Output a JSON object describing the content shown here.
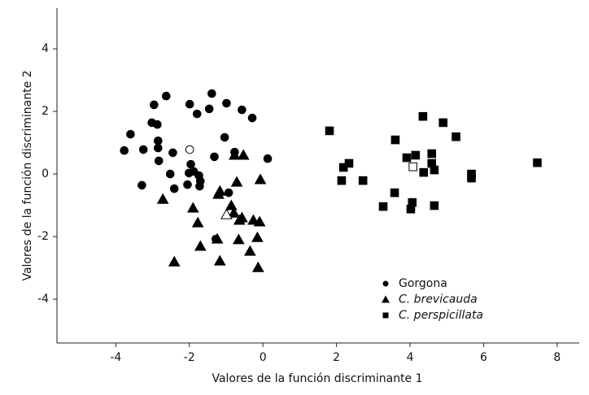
{
  "chart_data": {
    "type": "scatter",
    "x_label": "Valores de la función discriminante 1",
    "y_label": "Valores de la función discriminante 2",
    "xlim": [
      -5.6,
      8.6
    ],
    "ylim": [
      -5.4,
      5.3
    ],
    "xticks": [
      -4,
      -2,
      0,
      2,
      4,
      6,
      8
    ],
    "yticks": [
      -4,
      -2,
      0,
      2,
      4
    ],
    "series": [
      {
        "name": "Gorgona",
        "marker": "circle",
        "italic": false,
        "color": "#000000",
        "x": [
          -2.63,
          -2.96,
          -3.02,
          -2.87,
          -2.85,
          -2.85,
          -3.25,
          -3.77,
          -3.6,
          -2.83,
          -2.52,
          -2.45,
          -2.41,
          -3.29,
          -1.99,
          -1.79,
          -1.39,
          -1.46,
          -0.99,
          -0.57,
          -0.29,
          -1.04,
          -1.32,
          -0.77,
          0.13,
          -1.96,
          -2.01,
          -1.88,
          -2.05,
          -1.74,
          -1.7,
          -1.72,
          -0.93,
          -1.28
        ],
        "y": [
          2.49,
          2.21,
          1.64,
          1.58,
          1.06,
          0.83,
          0.78,
          0.75,
          1.27,
          0.42,
          0.0,
          0.68,
          -0.47,
          -0.36,
          2.23,
          1.92,
          2.57,
          2.08,
          2.26,
          2.05,
          1.79,
          1.17,
          0.55,
          0.7,
          0.49,
          0.31,
          0.03,
          0.08,
          -0.34,
          -0.05,
          -0.23,
          -0.39,
          -0.6,
          -2.08
        ],
        "centroid": [
          -1.99,
          0.78
        ]
      },
      {
        "name": "C. brevicauda",
        "marker": "triangle",
        "italic": true,
        "color": "#000000",
        "x": [
          -2.72,
          -1.9,
          -1.77,
          -2.41,
          -1.7,
          -1.21,
          -1.17,
          -0.86,
          -0.79,
          -1.24,
          -1.17,
          -0.77,
          -0.53,
          -0.71,
          -0.07,
          -0.57,
          -0.66,
          -0.35,
          -0.26,
          -0.15,
          -0.09,
          -0.13,
          -0.64
        ],
        "y": [
          -0.81,
          -1.09,
          -1.56,
          -2.81,
          -2.31,
          -0.65,
          -0.55,
          -1.01,
          -1.25,
          -2.08,
          -2.78,
          0.6,
          0.6,
          -0.26,
          -0.18,
          -1.4,
          -2.1,
          -2.47,
          -1.48,
          -2.03,
          -1.53,
          -2.99,
          -1.48
        ],
        "centroid": [
          -0.99,
          -1.3
        ]
      },
      {
        "name": "C. perspicillata",
        "marker": "square",
        "italic": true,
        "color": "#000000",
        "x": [
          1.81,
          2.19,
          2.34,
          2.14,
          2.72,
          3.27,
          3.6,
          3.58,
          3.91,
          4.15,
          4.35,
          4.37,
          4.06,
          4.02,
          4.59,
          4.59,
          4.66,
          4.66,
          4.9,
          5.25,
          5.67,
          5.67,
          7.46
        ],
        "y": [
          1.38,
          0.21,
          0.34,
          -0.21,
          -0.21,
          -1.04,
          1.09,
          -0.6,
          0.52,
          0.6,
          1.84,
          0.05,
          -0.91,
          -1.12,
          0.65,
          0.34,
          0.13,
          -1.01,
          1.64,
          1.19,
          0.0,
          -0.13,
          0.36
        ],
        "centroid": [
          4.08,
          0.23
        ]
      }
    ]
  }
}
